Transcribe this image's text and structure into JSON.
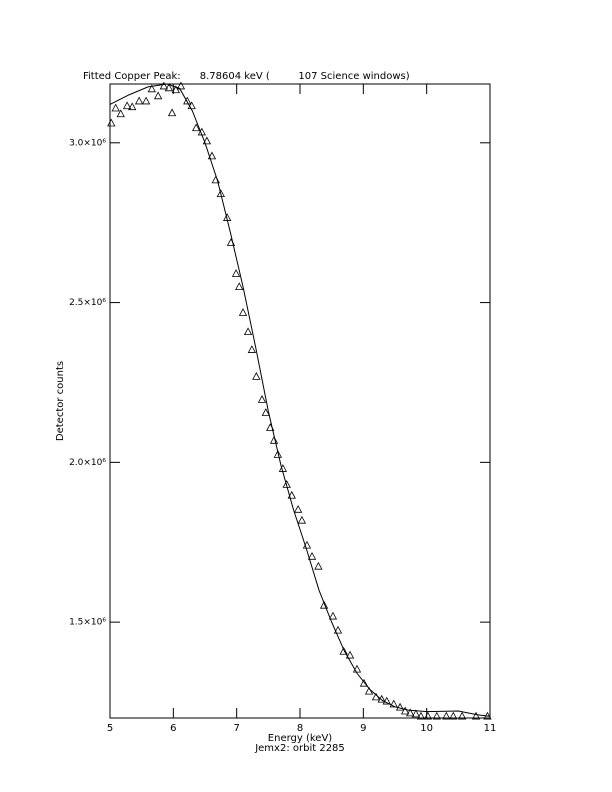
{
  "chart_data": {
    "type": "scatter",
    "title": "Fitted Copper Peak:      8.78604 keV (         107 Science windows)",
    "x_label": "Energy (keV)",
    "subtitle": "Jemx2: orbit 2285",
    "y_label": "Detector counts",
    "xlim": [
      5,
      11
    ],
    "xticks": [
      5,
      6,
      7,
      8,
      9,
      10,
      11
    ],
    "ylim": [
      1200000,
      3184000
    ],
    "yticks": [
      {
        "value": 1500000,
        "label": "1.5×10⁶"
      },
      {
        "value": 2000000,
        "label": "2.0×10⁶"
      },
      {
        "value": 2500000,
        "label": "2.5×10⁶"
      },
      {
        "value": 3000000,
        "label": "3.0×10⁶"
      }
    ],
    "color": "#000000",
    "series": [
      {
        "marker": "triangle",
        "x": [
          5.02,
          5.09,
          5.17,
          5.27,
          5.35,
          5.46,
          5.57,
          5.66,
          5.76,
          5.85,
          5.93,
          5.98,
          6.04,
          6.12,
          6.22,
          6.29,
          6.36,
          6.45,
          6.53,
          6.61,
          6.67,
          6.75,
          6.85,
          6.91,
          6.99,
          7.04,
          7.1,
          7.18,
          7.24,
          7.31,
          7.4,
          7.46,
          7.53,
          7.59,
          7.65,
          7.73,
          7.79,
          7.87,
          7.97,
          8.03,
          8.11,
          8.19,
          8.29,
          8.38,
          8.52,
          8.6,
          8.69,
          8.79,
          8.9,
          9.01,
          9.09,
          9.2,
          9.29,
          9.37,
          9.48,
          9.58,
          9.66,
          9.74,
          9.83,
          9.91,
          10.02,
          10.16,
          10.31,
          10.42,
          10.56,
          10.78,
          10.96
        ],
        "values": [
          3062000,
          3109000,
          3091000,
          3116000,
          3113000,
          3131000,
          3131000,
          3169000,
          3147000,
          3178000,
          3172000,
          3094000,
          3166000,
          3178000,
          3131000,
          3116000,
          3047000,
          3034000,
          3006000,
          2959000,
          2884000,
          2841000,
          2766000,
          2688000,
          2591000,
          2550000,
          2469000,
          2409000,
          2353000,
          2269000,
          2197000,
          2156000,
          2109000,
          2069000,
          2025000,
          1981000,
          1931000,
          1897000,
          1853000,
          1819000,
          1741000,
          1706000,
          1675000,
          1553000,
          1519000,
          1475000,
          1409000,
          1397000,
          1353000,
          1309000,
          1284000,
          1266000,
          1259000,
          1253000,
          1244000,
          1234000,
          1222000,
          1216000,
          1213000,
          1206000,
          1206000,
          1206000,
          1206000,
          1206000,
          1206000,
          1206000,
          1206000
        ]
      },
      {
        "marker": "line",
        "x": [
          5.0,
          5.3,
          5.6,
          5.9,
          6.1,
          6.3,
          6.5,
          6.7,
          6.9,
          7.1,
          7.3,
          7.5,
          7.7,
          7.9,
          8.1,
          8.3,
          8.5,
          8.7,
          8.9,
          9.1,
          9.3,
          9.5,
          9.7,
          10.0,
          10.5,
          10.8,
          11.0
        ],
        "values": [
          3120000,
          3150000,
          3175000,
          3184000,
          3170000,
          3100000,
          3000000,
          2880000,
          2720000,
          2550000,
          2360000,
          2160000,
          1990000,
          1850000,
          1730000,
          1600000,
          1500000,
          1410000,
          1340000,
          1290000,
          1255000,
          1235000,
          1225000,
          1220000,
          1222000,
          1210000,
          1205000
        ]
      }
    ]
  }
}
